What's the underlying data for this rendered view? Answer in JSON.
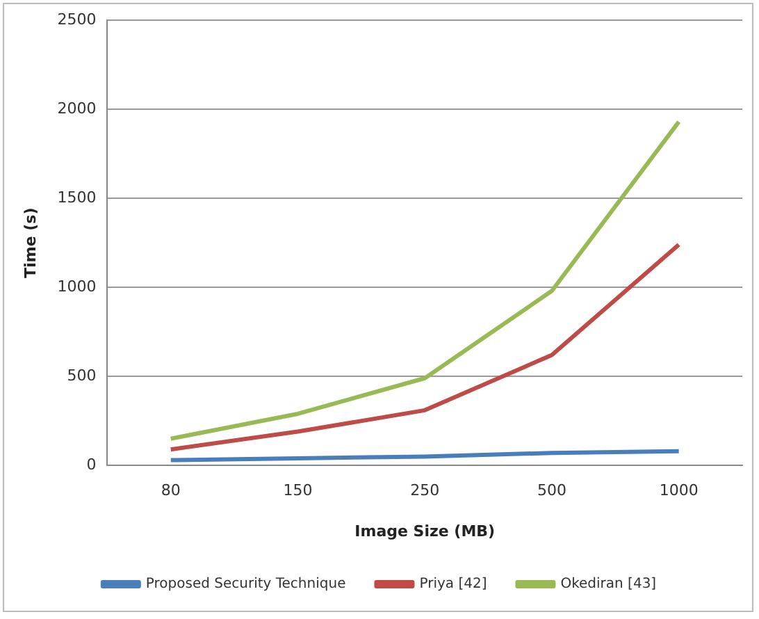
{
  "chart_data": {
    "type": "line",
    "xlabel": "Image Size (MB)",
    "ylabel": "Time (s)",
    "categories": [
      "80",
      "150",
      "250",
      "500",
      "1000"
    ],
    "series": [
      {
        "name": "Proposed Security Technique",
        "color": "#4a7ebb",
        "values": [
          30,
          40,
          50,
          70,
          80
        ]
      },
      {
        "name": "Priya [42]",
        "color": "#be4b48",
        "values": [
          90,
          190,
          310,
          620,
          1240
        ]
      },
      {
        "name": "Okediran [43]",
        "color": "#98b954",
        "values": [
          150,
          290,
          490,
          980,
          1930
        ]
      }
    ],
    "ylim": [
      0,
      2500
    ],
    "yticks": [
      0,
      500,
      1000,
      1500,
      2000,
      2500
    ],
    "grid": "y",
    "legend": "bottom",
    "marker": "none",
    "line_style": "solid"
  }
}
